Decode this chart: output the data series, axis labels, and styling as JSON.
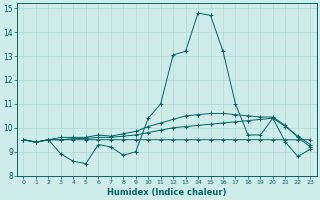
{
  "xlabel": "Humidex (Indice chaleur)",
  "background_color": "#ceecea",
  "grid_color": "#b2d8d4",
  "line_color": "#006666",
  "xlim": [
    -0.5,
    23.5
  ],
  "ylim": [
    8,
    15.2
  ],
  "yticks": [
    8,
    9,
    10,
    11,
    12,
    13,
    14,
    15
  ],
  "xticks": [
    0,
    1,
    2,
    3,
    4,
    5,
    6,
    7,
    8,
    9,
    10,
    11,
    12,
    13,
    14,
    15,
    16,
    17,
    18,
    19,
    20,
    21,
    22,
    23
  ],
  "series": [
    [
      9.5,
      9.4,
      9.5,
      8.9,
      8.6,
      8.5,
      9.3,
      9.2,
      8.85,
      9.0,
      10.4,
      11.0,
      13.05,
      13.2,
      14.8,
      14.7,
      13.2,
      11.0,
      9.7,
      9.7,
      10.4,
      9.4,
      8.8,
      9.1
    ],
    [
      9.5,
      9.4,
      9.5,
      9.5,
      9.5,
      9.5,
      9.5,
      9.5,
      9.5,
      9.5,
      9.5,
      9.5,
      9.5,
      9.5,
      9.5,
      9.5,
      9.5,
      9.5,
      9.5,
      9.5,
      9.5,
      9.5,
      9.5,
      9.5
    ],
    [
      9.5,
      9.4,
      9.5,
      9.5,
      9.55,
      9.55,
      9.6,
      9.6,
      9.65,
      9.7,
      9.8,
      9.9,
      10.0,
      10.05,
      10.1,
      10.15,
      10.2,
      10.25,
      10.3,
      10.35,
      10.4,
      10.05,
      9.65,
      9.3
    ],
    [
      9.5,
      9.4,
      9.5,
      9.6,
      9.6,
      9.6,
      9.7,
      9.65,
      9.75,
      9.85,
      10.05,
      10.2,
      10.35,
      10.5,
      10.55,
      10.6,
      10.6,
      10.55,
      10.5,
      10.45,
      10.45,
      10.1,
      9.6,
      9.2
    ]
  ]
}
